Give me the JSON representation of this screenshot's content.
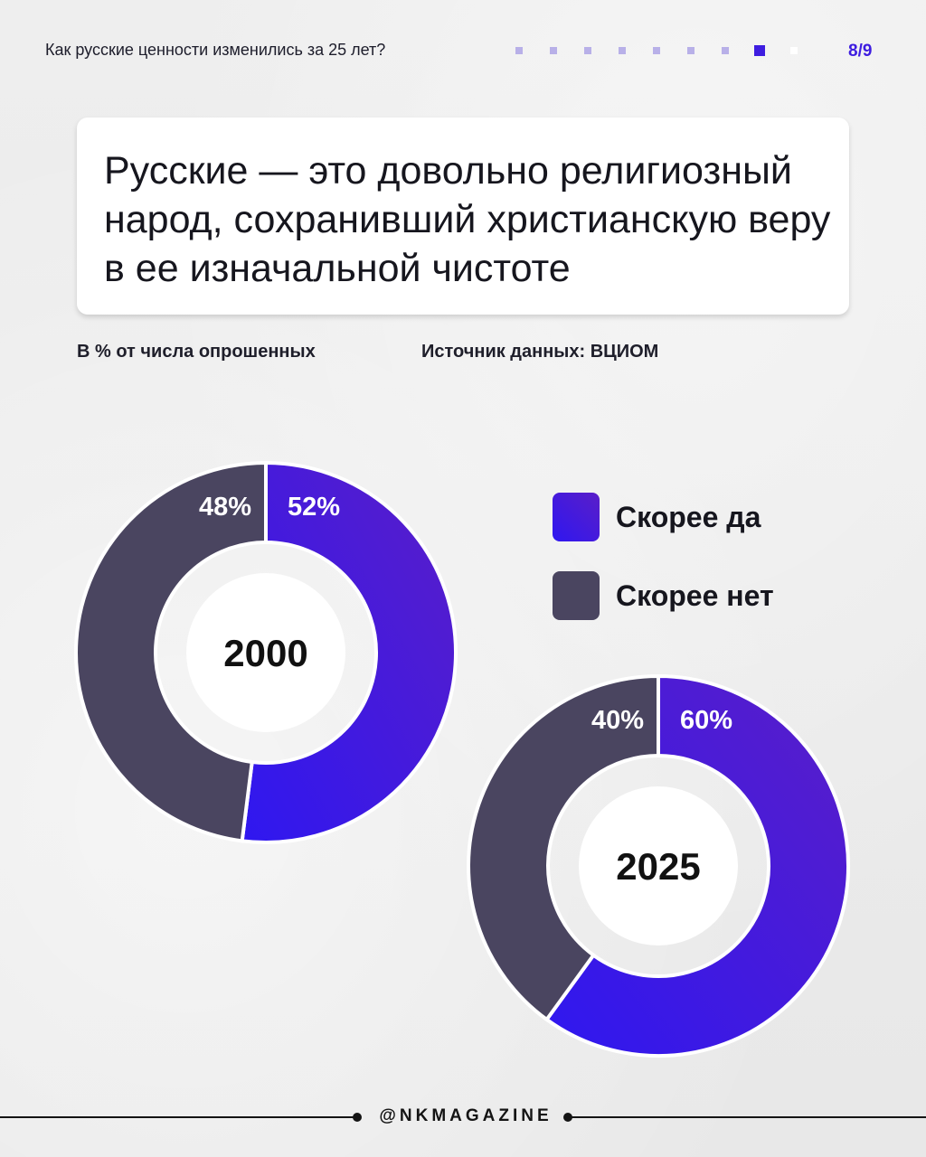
{
  "header": {
    "title": "Как русские ценности изменились за 25 лет?",
    "page_counter": "8/9",
    "progress": {
      "total": 9,
      "current": 8
    }
  },
  "card": {
    "title": "Русские — это довольно религиозный народ, сохранивший христианскую веру в ее изначальной чистоте"
  },
  "meta": {
    "unit_note": "В % от числа опрошенных",
    "source": "Источник данных: ВЦИОМ"
  },
  "colors": {
    "yes": "#3e1de0",
    "yes_light": "#5a1ec8",
    "no": "#4a4560",
    "accent": "#3e1de0"
  },
  "chart_data": [
    {
      "type": "pie",
      "variant": "donut",
      "center_label": "2000",
      "categories": [
        "Скорее да",
        "Скорее нет"
      ],
      "values": [
        52,
        48
      ],
      "labels": [
        "52%",
        "48%"
      ]
    },
    {
      "type": "pie",
      "variant": "donut",
      "center_label": "2025",
      "categories": [
        "Скорее да",
        "Скорее нет"
      ],
      "values": [
        60,
        40
      ],
      "labels": [
        "60%",
        "40%"
      ]
    }
  ],
  "legend": {
    "placement": "right",
    "items": [
      {
        "label": "Скорее да",
        "key": "yes"
      },
      {
        "label": "Скорее нет",
        "key": "no"
      }
    ]
  },
  "footer": {
    "handle": "@NKMAGAZINE"
  }
}
